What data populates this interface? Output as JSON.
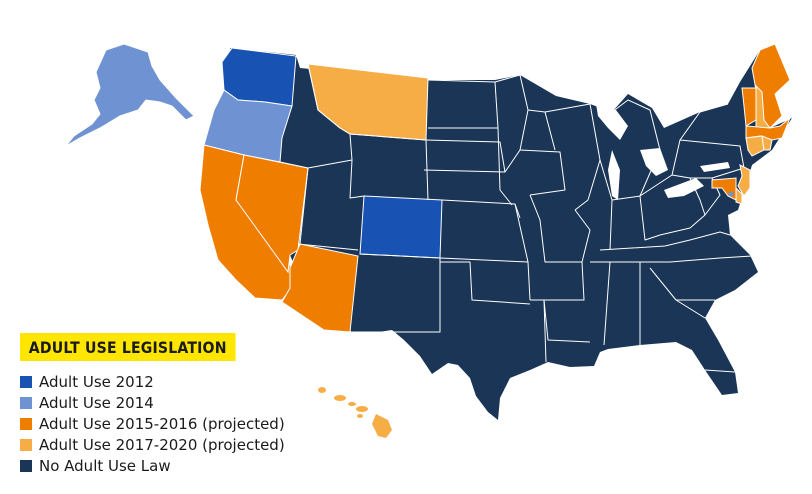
{
  "legend": {
    "title": "ADULT USE LEGISLATION",
    "items": [
      {
        "label": "Adult Use 2012",
        "color": "#1853b3"
      },
      {
        "label": "Adult Use 2014",
        "color": "#6f93d2"
      },
      {
        "label": "Adult Use 2015-2016 (projected)",
        "color": "#ef7d00"
      },
      {
        "label": "Adult Use 2017-2020 (projected)",
        "color": "#f7ad46"
      },
      {
        "label": "No Adult Use Law",
        "color": "#1b3556"
      }
    ]
  },
  "states": [
    {
      "name": "washington",
      "category": "Adult Use 2012"
    },
    {
      "name": "colorado",
      "category": "Adult Use 2012"
    },
    {
      "name": "oregon",
      "category": "Adult Use 2014"
    },
    {
      "name": "alaska",
      "category": "Adult Use 2014"
    },
    {
      "name": "california",
      "category": "Adult Use 2015-2016 (projected)"
    },
    {
      "name": "nevada",
      "category": "Adult Use 2015-2016 (projected)"
    },
    {
      "name": "arizona",
      "category": "Adult Use 2015-2016 (projected)"
    },
    {
      "name": "maine",
      "category": "Adult Use 2015-2016 (projected)"
    },
    {
      "name": "vermont",
      "category": "Adult Use 2015-2016 (projected)"
    },
    {
      "name": "massachusetts",
      "category": "Adult Use 2015-2016 (projected)"
    },
    {
      "name": "maryland",
      "category": "Adult Use 2015-2016 (projected)"
    },
    {
      "name": "montana",
      "category": "Adult Use 2017-2020 (projected)"
    },
    {
      "name": "new-hampshire",
      "category": "Adult Use 2017-2020 (projected)"
    },
    {
      "name": "connecticut",
      "category": "Adult Use 2017-2020 (projected)"
    },
    {
      "name": "rhode-island",
      "category": "Adult Use 2017-2020 (projected)"
    },
    {
      "name": "new-jersey",
      "category": "Adult Use 2017-2020 (projected)"
    },
    {
      "name": "delaware",
      "category": "Adult Use 2017-2020 (projected)"
    },
    {
      "name": "hawaii",
      "category": "Adult Use 2017-2020 (projected)"
    },
    {
      "name": "district-of-columbia",
      "category": "Adult Use 2014"
    }
  ]
}
